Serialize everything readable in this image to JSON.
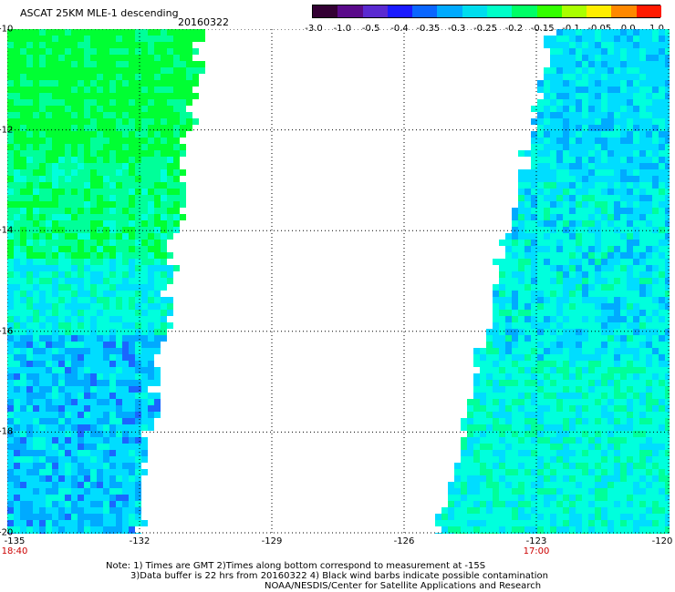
{
  "header": {
    "title": "ASCAT 25KM MLE-1 descending",
    "date": "20160322"
  },
  "colorbar": {
    "ticks": [
      "-3.0",
      "-1.0",
      "-0.5",
      "-0.4",
      "-0.35",
      "-0.3",
      "-0.25",
      "-0.2",
      "-0.15",
      "-0.1",
      "-0.05",
      "0.0",
      "1.0"
    ],
    "colors": [
      "#330033",
      "#5a0a8a",
      "#5a2ad0",
      "#1a1aff",
      "#0a66ff",
      "#00aaff",
      "#00ddee",
      "#00ffc8",
      "#00ff66",
      "#33ff00",
      "#aaff00",
      "#ffee00",
      "#ff8800",
      "#ff1a00"
    ]
  },
  "map": {
    "lat_labels": [
      "-10",
      "-12",
      "-14",
      "-16",
      "-18",
      "-20"
    ],
    "lon_labels": [
      "-135",
      "-132",
      "-129",
      "-126",
      "-123",
      "-120"
    ],
    "time_labels": [
      {
        "lon": "-135",
        "time": "18:40"
      },
      {
        "lon": "-123",
        "time": "17:00"
      }
    ],
    "lon_range": [
      -135,
      -120
    ],
    "lat_range": [
      -10,
      -20
    ],
    "grid": true,
    "swath_colors": {
      "high": "#00ff33",
      "mid_high": "#00ff99",
      "mid": "#00ffdd",
      "low": "#00ddff",
      "lower": "#00aaff",
      "lowest": "#1a66ff"
    }
  },
  "notes": {
    "line1": "Note: 1) Times are GMT 2)Times along bottom correspond to measurement at -15S",
    "line2": "3)Data buffer is 22 hrs from 20160322 4) Black wind barbs indicate possible contamination",
    "line3": "NOAA/NESDIS/Center for Satellite Applications and Research"
  }
}
